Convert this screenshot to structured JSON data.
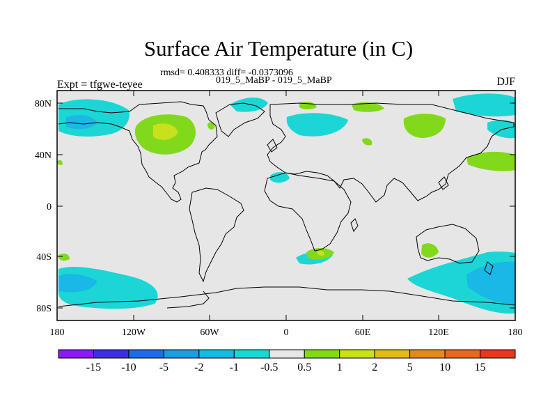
{
  "title": "Surface Air Temperature (in C)",
  "stats": "rmsd= 0.408333 diff= -0.0373096",
  "subtitle": "019_5_MaBP - 019_5_MaBP",
  "expt_label": "Expt = tfgwe-teyee",
  "season_label": "DJF",
  "y_ticks": [
    "80N",
    "40N",
    "0",
    "40S",
    "80S"
  ],
  "x_ticks": [
    "180",
    "120W",
    "60W",
    "0",
    "60E",
    "120E",
    "180"
  ],
  "colorbar": {
    "colors": [
      "#8c1aef",
      "#3c31d6",
      "#1c6ee6",
      "#1c9ce1",
      "#1ab8e6",
      "#1cd6d6",
      "#e6e6e6",
      "#82d91c",
      "#c9e01c",
      "#e3b81c",
      "#e6891c",
      "#e66a1c",
      "#e3391c"
    ],
    "labels": [
      "-15",
      "-10",
      "-5",
      "-2",
      "-1",
      "-0.5",
      "0.5",
      "1",
      "2",
      "5",
      "10",
      "15"
    ]
  },
  "colors": {
    "background": "#e6e6e6",
    "neg_light": "#1cd6d6",
    "neg_mid": "#1ab8e6",
    "neg_strong": "#1c9ce1",
    "pos_light": "#82d91c",
    "pos_mid": "#c9e01c"
  }
}
